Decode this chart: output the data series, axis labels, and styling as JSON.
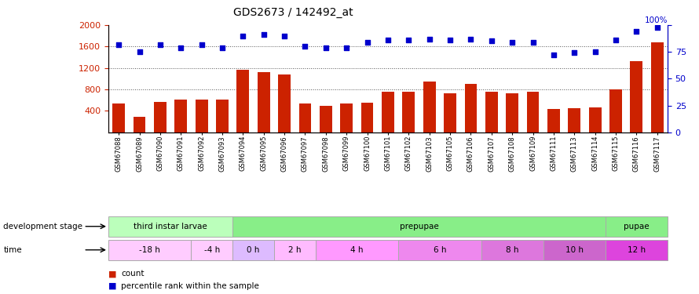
{
  "title": "GDS2673 / 142492_at",
  "samples": [
    "GSM67088",
    "GSM67089",
    "GSM67090",
    "GSM67091",
    "GSM67092",
    "GSM67093",
    "GSM67094",
    "GSM67095",
    "GSM67096",
    "GSM67097",
    "GSM67098",
    "GSM67099",
    "GSM67100",
    "GSM67101",
    "GSM67102",
    "GSM67103",
    "GSM67105",
    "GSM67106",
    "GSM67107",
    "GSM67108",
    "GSM67109",
    "GSM67111",
    "GSM67113",
    "GSM67114",
    "GSM67115",
    "GSM67116",
    "GSM67117"
  ],
  "counts": [
    530,
    295,
    570,
    610,
    615,
    610,
    1160,
    1120,
    1080,
    530,
    500,
    530,
    545,
    755,
    760,
    950,
    720,
    900,
    760,
    720,
    755,
    440,
    450,
    460,
    800,
    1330,
    1680
  ],
  "percentile": [
    82,
    75,
    82,
    79,
    82,
    79,
    90,
    91,
    90,
    80,
    79,
    79,
    84,
    86,
    86,
    87,
    86,
    87,
    85,
    84,
    84,
    72,
    74,
    75,
    86,
    94,
    98
  ],
  "ylim_left": [
    0,
    2000
  ],
  "ylim_right": [
    0,
    100
  ],
  "yticks_left": [
    400,
    800,
    1200,
    1600,
    2000
  ],
  "yticks_right": [
    0,
    25,
    50,
    75,
    100
  ],
  "bar_color": "#cc2200",
  "scatter_color": "#0000cc",
  "gridline_color": "#555555",
  "gridline_values": [
    800,
    1200,
    1600
  ],
  "dev_stage_row": [
    {
      "label": "third instar larvae",
      "color": "#bbffbb",
      "span": [
        0,
        6
      ]
    },
    {
      "label": "prepupae",
      "color": "#88ee88",
      "span": [
        6,
        24
      ]
    },
    {
      "label": "pupae",
      "color": "#88ee88",
      "span": [
        24,
        27
      ]
    }
  ],
  "time_row": [
    {
      "label": "-18 h",
      "color": "#ffccff",
      "span": [
        0,
        4
      ]
    },
    {
      "label": "-4 h",
      "color": "#ffccff",
      "span": [
        4,
        6
      ]
    },
    {
      "label": "0 h",
      "color": "#ddbbff",
      "span": [
        6,
        8
      ]
    },
    {
      "label": "2 h",
      "color": "#ffbbff",
      "span": [
        8,
        10
      ]
    },
    {
      "label": "4 h",
      "color": "#ff99ff",
      "span": [
        10,
        14
      ]
    },
    {
      "label": "6 h",
      "color": "#ee88ee",
      "span": [
        14,
        18
      ]
    },
    {
      "label": "8 h",
      "color": "#dd77dd",
      "span": [
        18,
        21
      ]
    },
    {
      "label": "10 h",
      "color": "#cc66cc",
      "span": [
        21,
        24
      ]
    },
    {
      "label": "12 h",
      "color": "#dd44dd",
      "span": [
        24,
        27
      ]
    }
  ]
}
